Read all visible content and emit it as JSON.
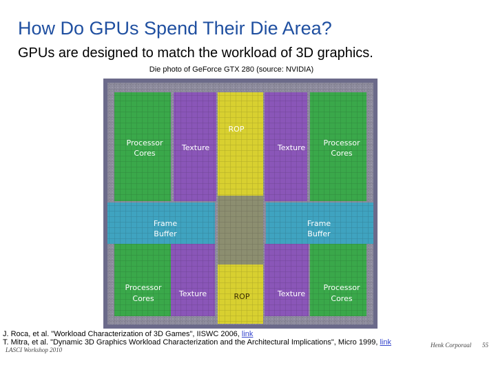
{
  "slide": {
    "title": "How Do GPUs Spend Their Die Area?",
    "subtitle": "GPUs are designed to match the workload of 3D graphics.",
    "caption": "Die photo of GeForce GTX 280 (source: NVIDIA)"
  },
  "die_labels": {
    "rop_top": "ROP",
    "rop_bottom": "ROP",
    "proc_tl_1": "Processor",
    "proc_tl_2": "Cores",
    "proc_tr_1": "Processor",
    "proc_tr_2": "Cores",
    "proc_bl_1": "Processor",
    "proc_bl_2": "Cores",
    "proc_br_1": "Processor",
    "proc_br_2": "Cores",
    "tex_tl": "Texture",
    "tex_tr": "Texture",
    "tex_bl": "Texture",
    "tex_br": "Texture",
    "fb_l_1": "Frame",
    "fb_l_2": "Buffer",
    "fb_r_1": "Frame",
    "fb_r_2": "Buffer"
  },
  "references": [
    {
      "text": "J. Roca, et al. \"Workload Characterization of 3D Games\", IISWC 2006, ",
      "link": "link"
    },
    {
      "text": "T. Mitra, et al. \"Dynamic 3D Graphics Workload Characterization and the Architectural Implications\", Micro 1999, ",
      "link": "link"
    }
  ],
  "footer": {
    "left": "LASCI Workshop 2010",
    "center": "Henk Corporaal",
    "page": "55"
  },
  "colors": {
    "title": "#1f4fa0",
    "processor": "#3aa84a",
    "texture": "#8a56b8",
    "rop": "#d8d030",
    "frame_buffer": "#3fa3c0"
  }
}
